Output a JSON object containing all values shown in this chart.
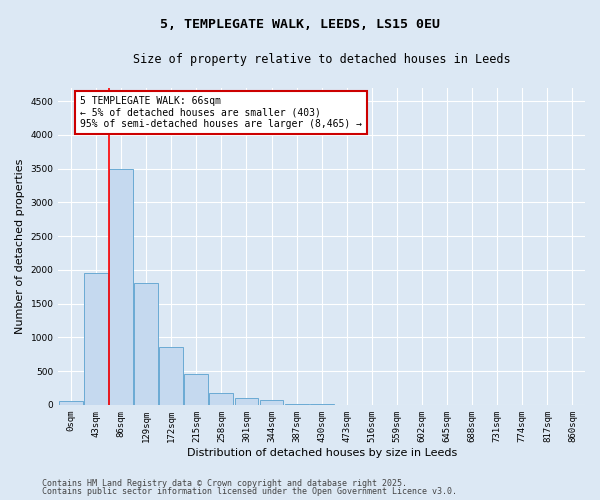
{
  "title_line1": "5, TEMPLEGATE WALK, LEEDS, LS15 0EU",
  "title_line2": "Size of property relative to detached houses in Leeds",
  "xlabel": "Distribution of detached houses by size in Leeds",
  "ylabel": "Number of detached properties",
  "bar_labels": [
    "0sqm",
    "43sqm",
    "86sqm",
    "129sqm",
    "172sqm",
    "215sqm",
    "258sqm",
    "301sqm",
    "344sqm",
    "387sqm",
    "430sqm",
    "473sqm",
    "516sqm",
    "559sqm",
    "602sqm",
    "645sqm",
    "688sqm",
    "731sqm",
    "774sqm",
    "817sqm",
    "860sqm"
  ],
  "bar_values": [
    50,
    1950,
    3500,
    1800,
    850,
    450,
    175,
    100,
    65,
    10,
    5,
    3,
    2,
    1,
    1,
    0,
    0,
    0,
    0,
    0,
    0
  ],
  "bar_color": "#c5d9ef",
  "bar_edge_color": "#6aaad4",
  "ylim": [
    0,
    4700
  ],
  "yticks": [
    0,
    500,
    1000,
    1500,
    2000,
    2500,
    3000,
    3500,
    4000,
    4500
  ],
  "red_line_x": 1.5,
  "annotation_text": "5 TEMPLEGATE WALK: 66sqm\n← 5% of detached houses are smaller (403)\n95% of semi-detached houses are larger (8,465) →",
  "annotation_box_color": "#ffffff",
  "annotation_box_edge": "#cc0000",
  "footer_line1": "Contains HM Land Registry data © Crown copyright and database right 2025.",
  "footer_line2": "Contains public sector information licensed under the Open Government Licence v3.0.",
  "bg_color": "#dce8f4",
  "plot_bg_color": "#dce8f4",
  "grid_color": "#ffffff",
  "title_fontsize": 9.5,
  "subtitle_fontsize": 8.5,
  "axis_label_fontsize": 8,
  "tick_fontsize": 6.5,
  "annotation_fontsize": 7,
  "footer_fontsize": 6
}
